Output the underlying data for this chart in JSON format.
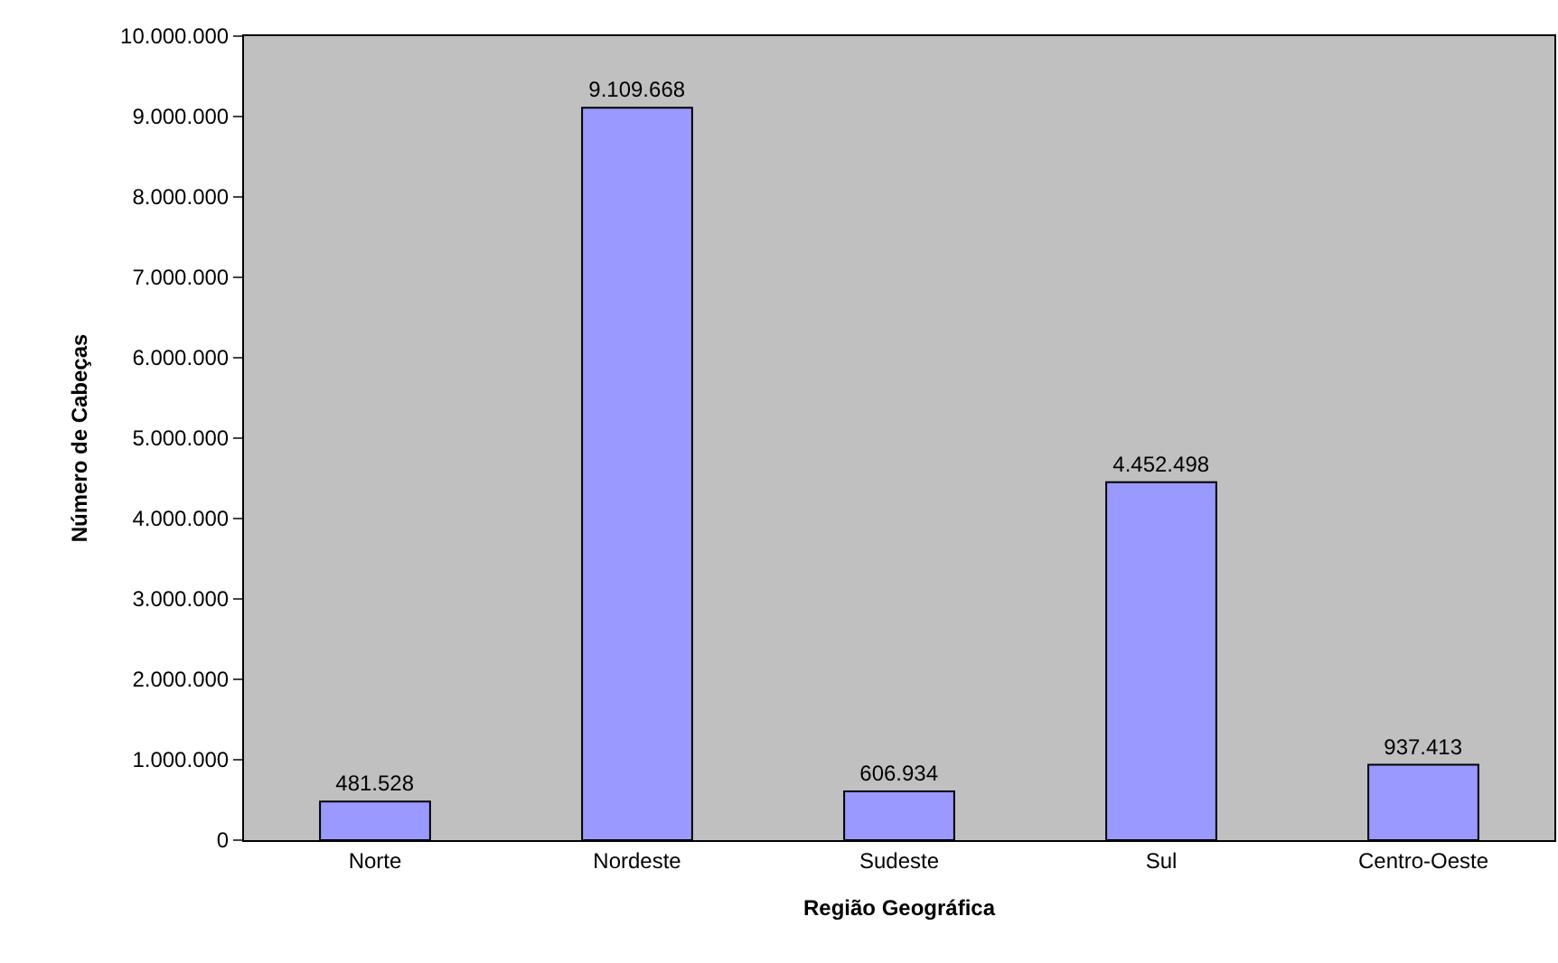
{
  "chart_data": {
    "type": "bar",
    "xlabel": "Região Geográfica",
    "ylabel": "Número de Cabeças",
    "categories": [
      "Norte",
      "Nordeste",
      "Sudeste",
      "Sul",
      "Centro-Oeste"
    ],
    "values": [
      481528,
      9109668,
      606934,
      4452498,
      937413
    ],
    "value_labels": [
      "481.528",
      "9.109.668",
      "606.934",
      "4.452.498",
      "937.413"
    ],
    "color": "#9999ff",
    "ylim": [
      0,
      10000000
    ],
    "yticks": [
      {
        "value": 0,
        "label": "0"
      },
      {
        "value": 1000000,
        "label": "1.000.000"
      },
      {
        "value": 2000000,
        "label": "2.000.000"
      },
      {
        "value": 3000000,
        "label": "3.000.000"
      },
      {
        "value": 4000000,
        "label": "4.000.000"
      },
      {
        "value": 5000000,
        "label": "5.000.000"
      },
      {
        "value": 6000000,
        "label": "6.000.000"
      },
      {
        "value": 7000000,
        "label": "7.000.000"
      },
      {
        "value": 8000000,
        "label": "8.000.000"
      },
      {
        "value": 9000000,
        "label": "9.000.000"
      },
      {
        "value": 10000000,
        "label": "10.000.000"
      }
    ],
    "grid": false,
    "legend": false
  }
}
